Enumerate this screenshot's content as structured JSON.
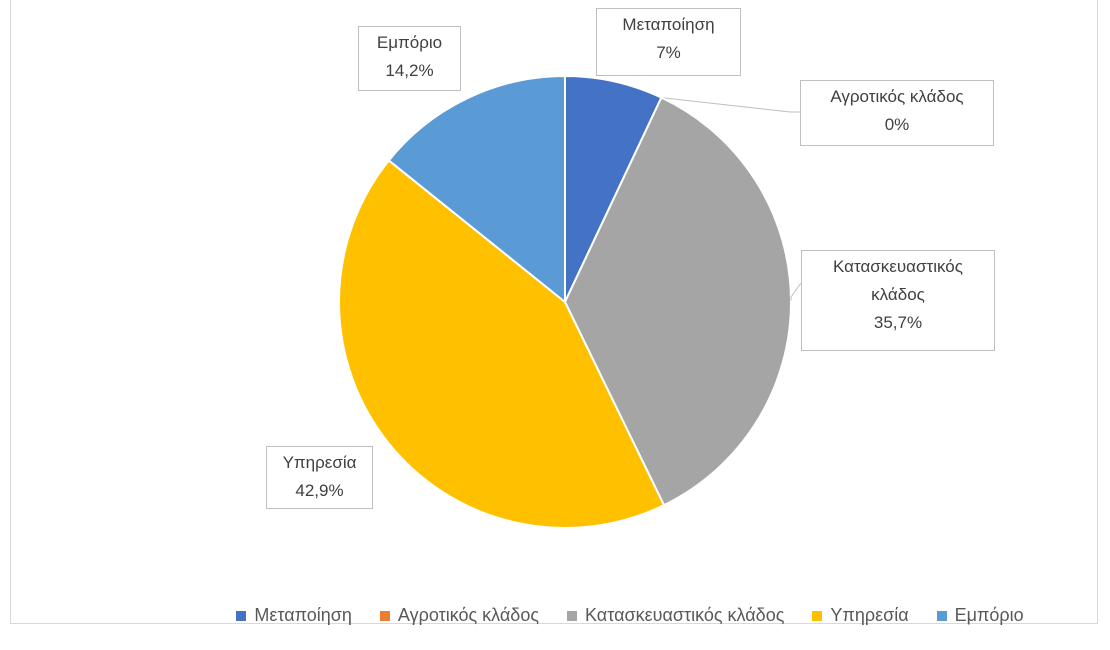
{
  "chart_data": {
    "type": "pie",
    "categories": [
      "Μεταποίηση",
      "Αγροτικός κλάδος",
      "Κατασκευαστικός κλάδος",
      "Υπηρεσία",
      "Εμπόριο"
    ],
    "values": [
      7,
      0,
      35.7,
      42.9,
      14.2
    ],
    "value_labels": [
      "7%",
      "0%",
      "35,7%",
      "42,9%",
      "14,2%"
    ],
    "colors": [
      "#4472c4",
      "#ed7d31",
      "#a5a5a5",
      "#ffc000",
      "#5b9bd5"
    ],
    "legend": "bottom"
  }
}
